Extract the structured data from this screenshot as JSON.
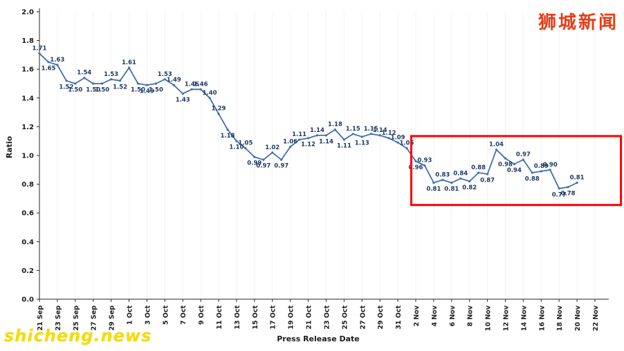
{
  "watermarks": {
    "top_right": "狮城新闻",
    "bottom_left": "shicheng.news"
  },
  "chart_data": {
    "type": "line",
    "title": "",
    "xlabel": "Press Release Date",
    "ylabel": "Ratio",
    "ylim": [
      0.0,
      2.0
    ],
    "y_tick_labels": [
      "0.0",
      "0.2",
      "0.4",
      "0.6",
      "0.8",
      "1.0",
      "1.2",
      "1.4",
      "1.6",
      "1.8",
      "2.0"
    ],
    "x_tick_labels": [
      "21 Sep",
      "23 Sep",
      "25 Sep",
      "27 Sep",
      "29 Sep",
      "1 Oct",
      "3 Oct",
      "5 Oct",
      "7 Oct",
      "9 Oct",
      "11 Oct",
      "13 Oct",
      "15 Oct",
      "17 Oct",
      "19 Oct",
      "21 Oct",
      "23 Oct",
      "25 Oct",
      "27 Oct",
      "29 Oct",
      "31 Oct",
      "2 Nov",
      "4 Nov",
      "6 Nov",
      "8 Nov",
      "10 Nov",
      "12 Nov",
      "14 Nov",
      "16 Nov",
      "18 Nov",
      "20 Nov",
      "22 Nov"
    ],
    "dates": [
      "21 Sep",
      "22 Sep",
      "23 Sep",
      "24 Sep",
      "25 Sep",
      "26 Sep",
      "27 Sep",
      "28 Sep",
      "29 Sep",
      "30 Sep",
      "1 Oct",
      "2 Oct",
      "3 Oct",
      "4 Oct",
      "5 Oct",
      "6 Oct",
      "7 Oct",
      "8 Oct",
      "9 Oct",
      "10 Oct",
      "11 Oct",
      "12 Oct",
      "13 Oct",
      "14 Oct",
      "15 Oct",
      "16 Oct",
      "17 Oct",
      "18 Oct",
      "19 Oct",
      "20 Oct",
      "21 Oct",
      "22 Oct",
      "23 Oct",
      "24 Oct",
      "25 Oct",
      "26 Oct",
      "27 Oct",
      "28 Oct",
      "29 Oct",
      "30 Oct",
      "31 Oct",
      "1 Nov",
      "2 Nov",
      "3 Nov",
      "4 Nov",
      "5 Nov",
      "6 Nov",
      "7 Nov",
      "8 Nov",
      "9 Nov",
      "10 Nov",
      "11 Nov",
      "12 Nov",
      "13 Nov",
      "14 Nov",
      "15 Nov",
      "16 Nov",
      "17 Nov",
      "18 Nov",
      "19 Nov",
      "20 Nov"
    ],
    "values": [
      1.71,
      1.65,
      1.63,
      1.52,
      1.5,
      1.54,
      1.5,
      1.5,
      1.53,
      1.52,
      1.61,
      1.5,
      1.49,
      1.5,
      1.53,
      1.49,
      1.43,
      1.46,
      1.46,
      1.4,
      1.29,
      1.18,
      1.1,
      1.05,
      0.99,
      0.97,
      1.02,
      0.97,
      1.06,
      1.11,
      1.12,
      1.14,
      1.14,
      1.18,
      1.11,
      1.15,
      1.13,
      1.15,
      1.14,
      1.12,
      1.09,
      1.05,
      0.96,
      0.93,
      0.81,
      0.83,
      0.81,
      0.84,
      0.82,
      0.88,
      0.87,
      1.04,
      0.98,
      0.94,
      0.97,
      0.88,
      0.89,
      0.9,
      0.77,
      0.78,
      0.81
    ],
    "point_labels_visible": true,
    "line_color": "#3f6fad",
    "point_label_color": "#1d3a63",
    "axis_color": "#262626",
    "grid": "faint-vertical",
    "legend": "none",
    "highlight_box": {
      "from_date": "1 Nov",
      "to_date": "22 Nov",
      "x_start_day": 41.5,
      "x_end_day": 64.9,
      "value_top": 1.135,
      "value_bottom": 0.655,
      "color": "#ff0000"
    }
  }
}
